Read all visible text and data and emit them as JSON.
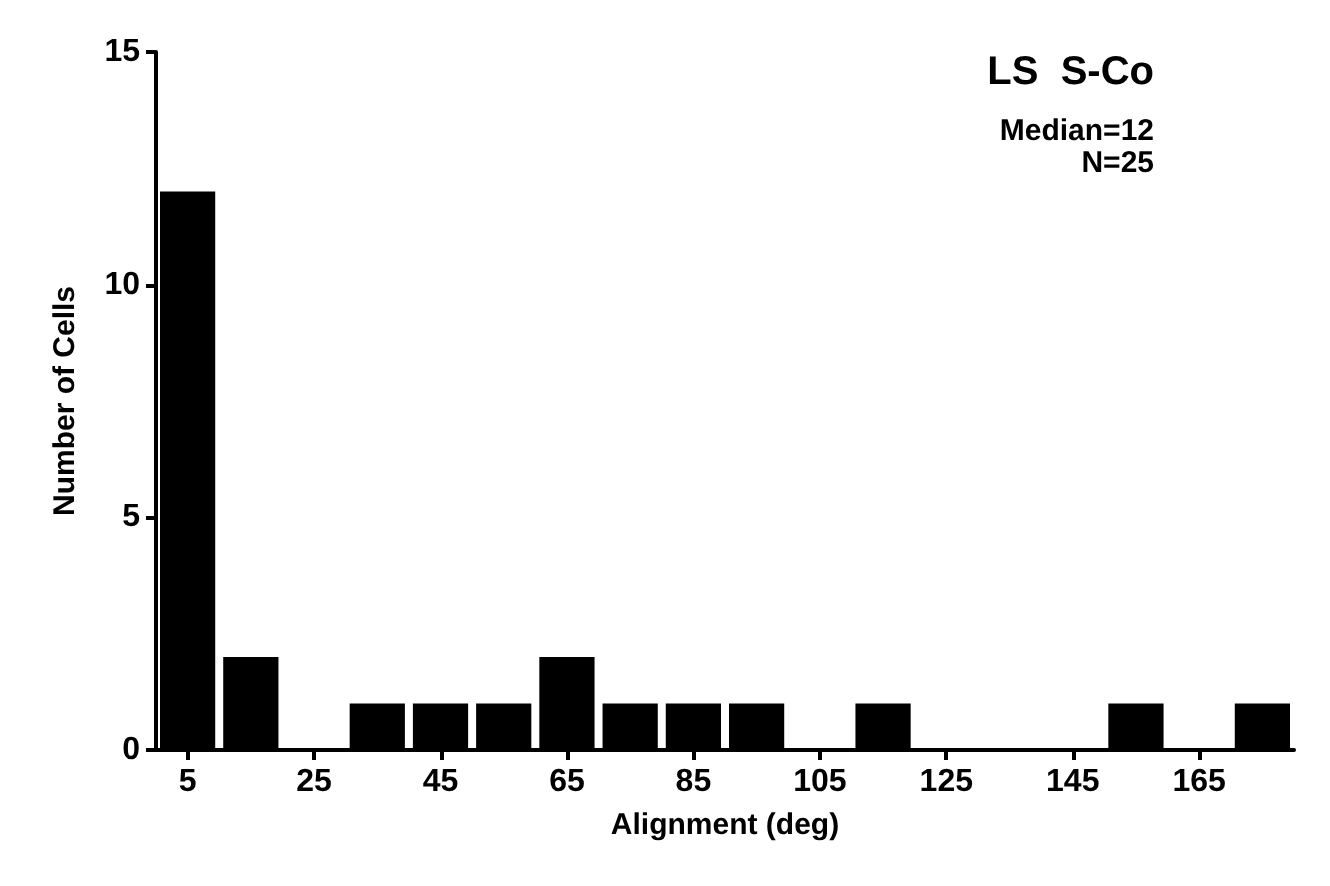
{
  "chart_data": {
    "type": "histogram",
    "xlabel": "Alignment (deg)",
    "ylabel": "Number of Cells",
    "bins": [
      0,
      10,
      20,
      30,
      40,
      50,
      60,
      70,
      80,
      90,
      100,
      110,
      120,
      130,
      140,
      150,
      160,
      170,
      180
    ],
    "values": [
      12,
      2,
      0,
      1,
      1,
      1,
      2,
      1,
      1,
      1,
      0,
      1,
      0,
      0,
      0,
      1,
      0,
      1
    ],
    "color": "#000000",
    "xlim": [
      0,
      180
    ],
    "xticks": [
      5,
      25,
      45,
      65,
      85,
      105,
      125,
      145,
      165
    ],
    "ylim": [
      0,
      15
    ],
    "yticks": [
      0,
      5,
      10,
      15
    ],
    "annotations": [
      "LS  S-Co",
      "Median=12",
      "N=25"
    ],
    "grid": false
  }
}
